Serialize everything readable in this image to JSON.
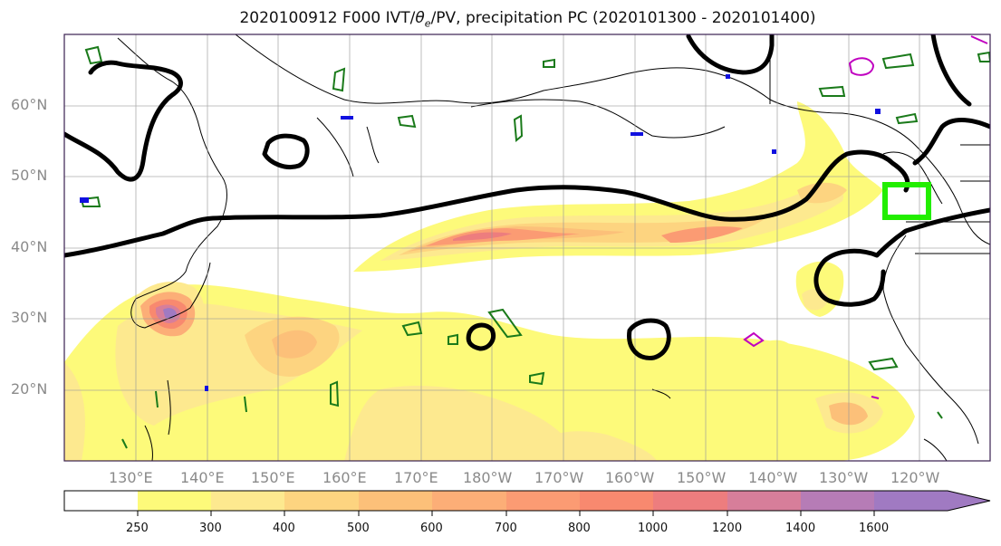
{
  "title_main": "2020100912 F000 IVT/",
  "title_theta": "θ",
  "title_sub": "e",
  "title_tail": "/PV, precipitation PC (2020101300 - 2020101400)",
  "lat_labels": [
    "60°N",
    "50°N",
    "40°N",
    "30°N",
    "20°N"
  ],
  "lon_labels": [
    "130°E",
    "140°E",
    "150°E",
    "160°E",
    "170°E",
    "180°W",
    "170°W",
    "160°W",
    "150°W",
    "140°W",
    "130°W",
    "120°W"
  ],
  "colorbar": {
    "levels": [
      "250",
      "300",
      "400",
      "500",
      "600",
      "700",
      "800",
      "1000",
      "1200",
      "1400",
      "1600"
    ],
    "colors": [
      "#ffffff",
      "#fdfa7a",
      "#fde98f",
      "#fdd480",
      "#fcc079",
      "#fcae77",
      "#fb9b73",
      "#f8896f",
      "#ed7d7e",
      "#d77e9a",
      "#b67cb6",
      "#a07ac2"
    ]
  },
  "colors": {
    "ivt_contour": "#000000",
    "pv_contour": "#1a7a1a",
    "pv_contour_alt": "#c000c0",
    "highlight_box": "#22ee00",
    "coastline": "#000000",
    "grid": "#999999"
  }
}
